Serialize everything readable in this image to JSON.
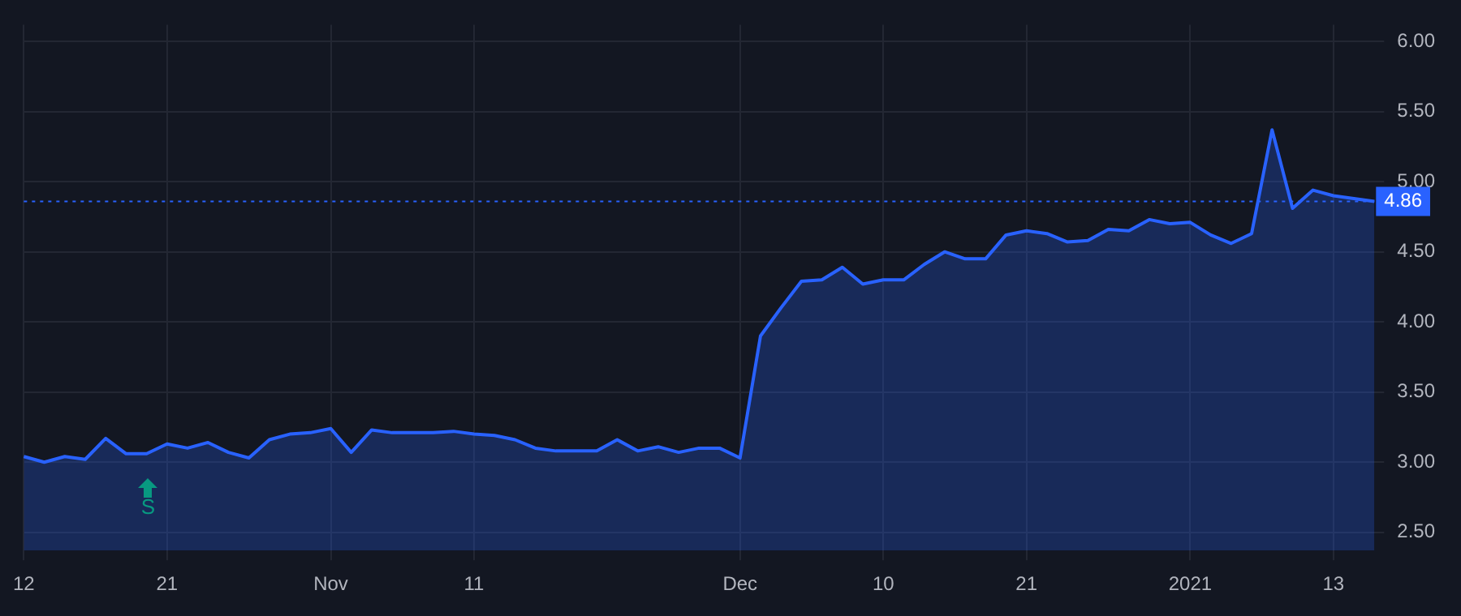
{
  "chart_data": {
    "type": "area",
    "categories": [
      "12",
      null,
      null,
      null,
      null,
      null,
      null,
      "21",
      null,
      null,
      null,
      null,
      null,
      null,
      null,
      "Nov",
      null,
      null,
      null,
      null,
      null,
      null,
      "11",
      null,
      null,
      null,
      null,
      null,
      null,
      null,
      null,
      null,
      null,
      null,
      null,
      "Dec",
      null,
      null,
      null,
      null,
      null,
      null,
      "10",
      null,
      null,
      null,
      null,
      null,
      null,
      "21",
      null,
      null,
      null,
      null,
      null,
      null,
      null,
      "2021",
      null,
      null,
      null,
      null,
      null,
      null,
      "13",
      null,
      null
    ],
    "series": [
      {
        "color": "#2962ff",
        "values": [
          3.04,
          3.0,
          3.04,
          3.02,
          3.17,
          3.06,
          3.06,
          3.13,
          3.1,
          3.14,
          3.07,
          3.03,
          3.16,
          3.2,
          3.21,
          3.24,
          3.07,
          3.23,
          3.21,
          3.21,
          3.21,
          3.22,
          3.2,
          3.19,
          3.16,
          3.1,
          3.08,
          3.08,
          3.08,
          3.16,
          3.08,
          3.11,
          3.07,
          3.1,
          3.1,
          3.03,
          3.9,
          4.1,
          4.29,
          4.3,
          4.39,
          4.27,
          4.3,
          4.3,
          4.41,
          4.5,
          4.45,
          4.45,
          4.62,
          4.65,
          4.63,
          4.57,
          4.58,
          4.66,
          4.65,
          4.73,
          4.7,
          4.71,
          4.62,
          4.56,
          4.63,
          5.37,
          4.81,
          4.94,
          4.9,
          4.88,
          4.86
        ]
      }
    ],
    "ylim": [
      2.37,
      6.12
    ],
    "yticks": [
      {
        "value": 2.5,
        "label": "2.50"
      },
      {
        "value": 3,
        "label": "3.00"
      },
      {
        "value": 3.5,
        "label": "3.50"
      },
      {
        "value": 4,
        "label": "4.00"
      },
      {
        "value": 4.5,
        "label": "4.50"
      },
      {
        "value": 5,
        "label": "5.00"
      },
      {
        "value": 5.5,
        "label": "5.50"
      },
      {
        "value": 6,
        "label": "6.00"
      }
    ],
    "ref_lines": [
      {
        "axis": "y",
        "value": 4.86,
        "label": "4.86",
        "color": "#2962ff",
        "line_style": "dotted"
      }
    ],
    "annotations": [
      "S"
    ],
    "grid": true,
    "legend": false
  }
}
